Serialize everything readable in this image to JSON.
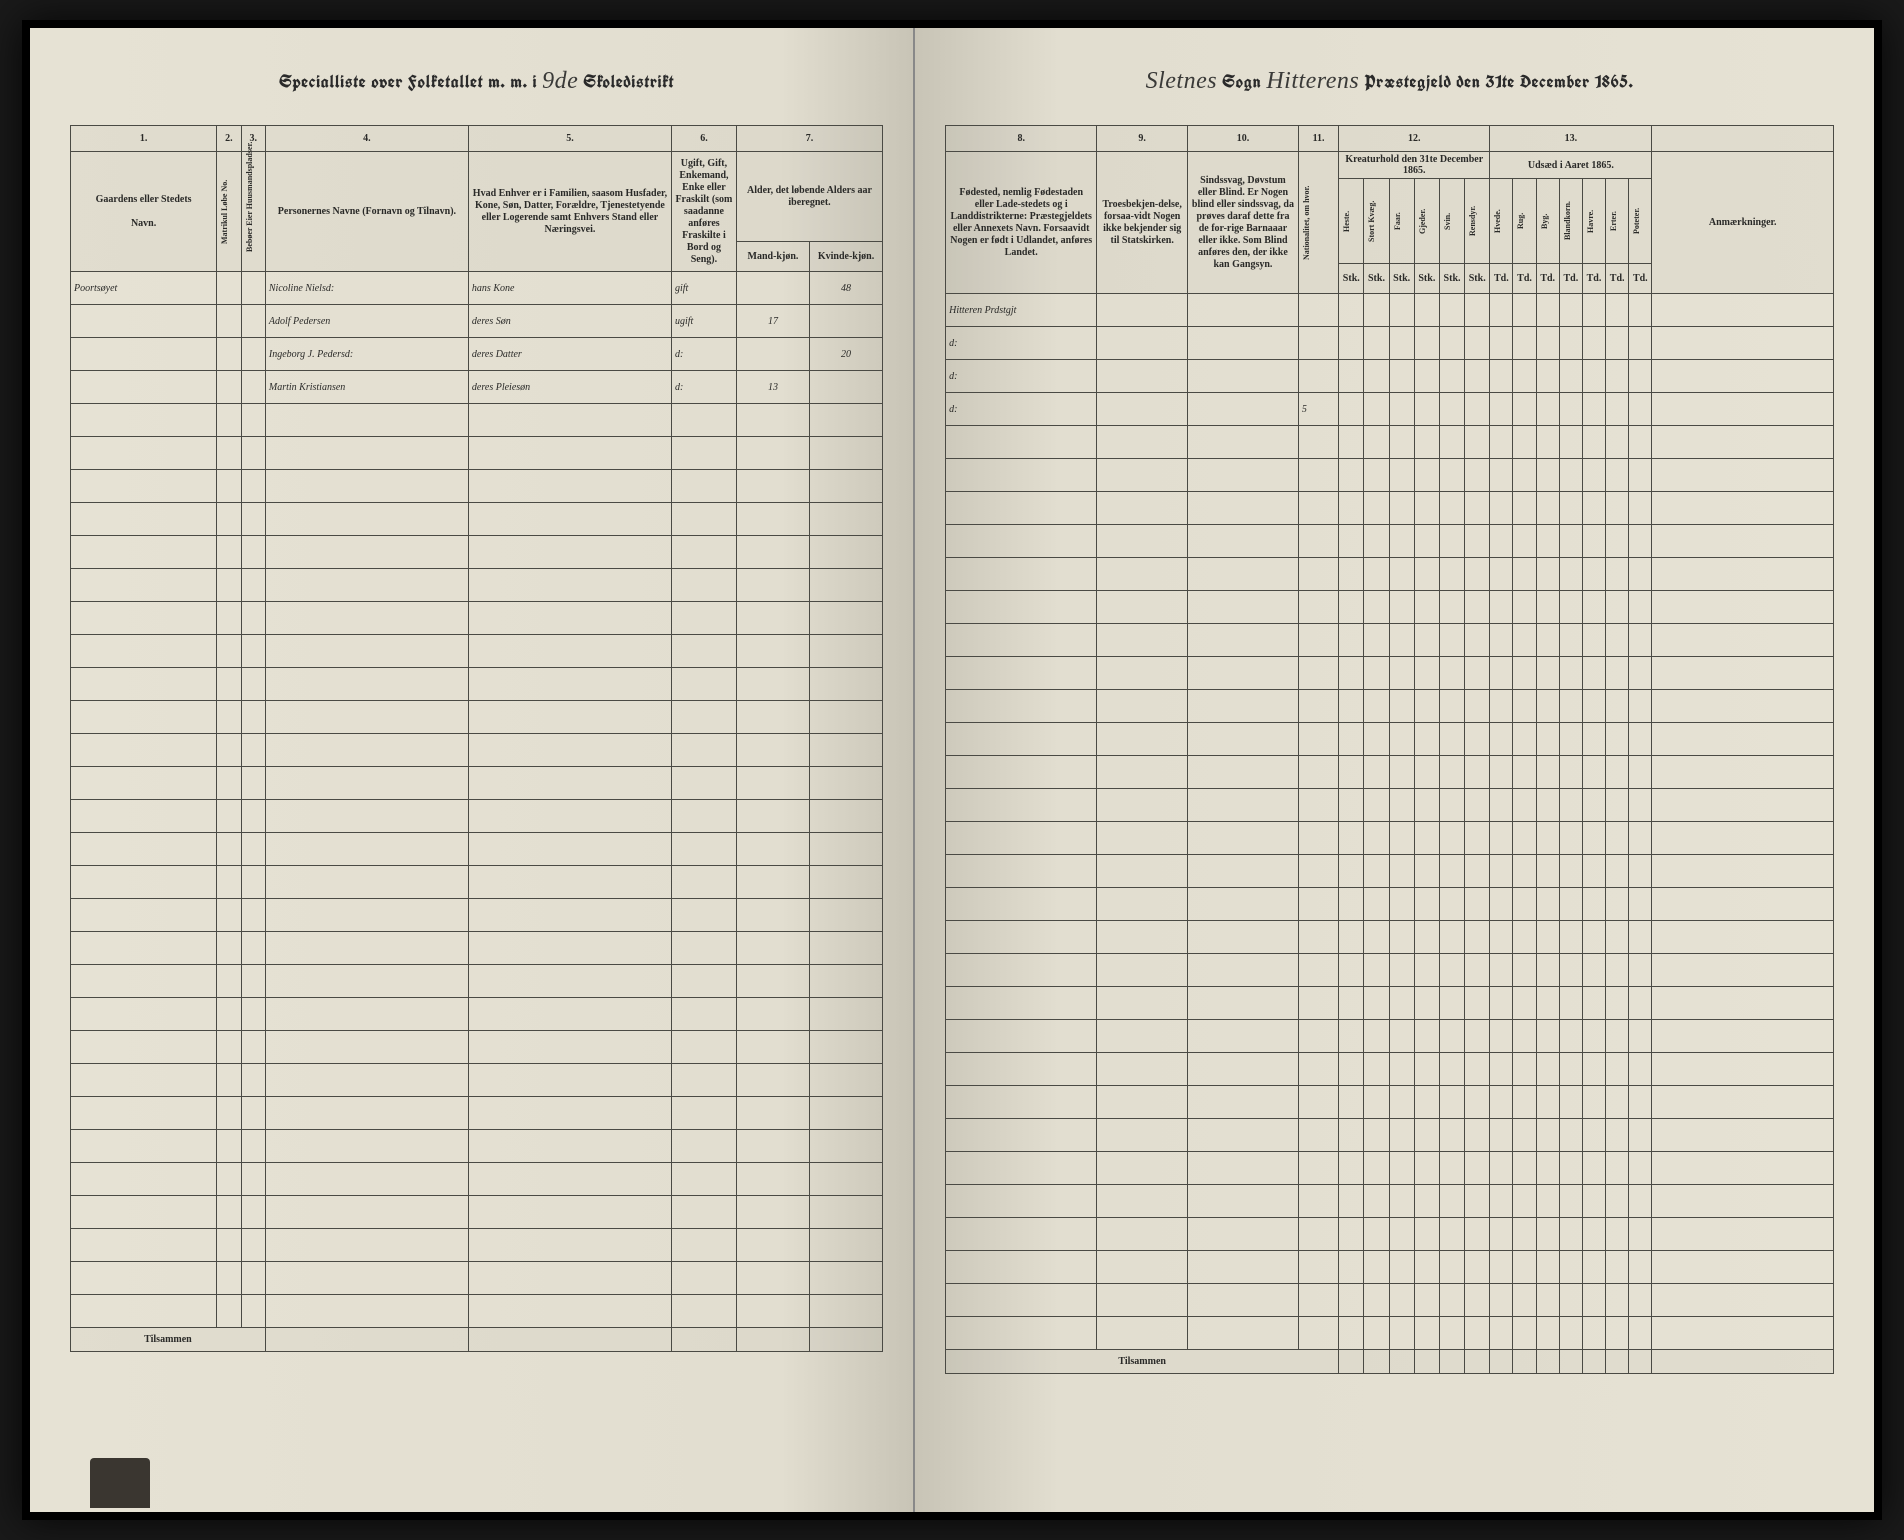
{
  "header": {
    "left_prefix": "Specialliste over Folketallet m. m. i",
    "district_num": "9de",
    "left_suffix": "Skoledistrikt",
    "sogn_label": "Sogn",
    "sogn_value": "Sletnes",
    "parish_value": "Hitterens",
    "right_suffix": "Præstegjeld den 31te December 1865."
  },
  "columns_left": {
    "c1_num": "1.",
    "c2_num": "2.",
    "c3_num": "3.",
    "c4_num": "4.",
    "c5_num": "5.",
    "c6_num": "6.",
    "c7_num": "7.",
    "c1_label": "Gaardens eller Stedets",
    "c1_sub": "Navn.",
    "c2_label": "Matrikul Løbe No.",
    "c3_label": "Bebøer Eier Huusmandspladser.",
    "c4_label": "Personernes Navne (Fornavn og Tilnavn).",
    "c5_label": "Hvad Enhver er i Familien, saasom Husfader, Kone, Søn, Datter, Forældre, Tjenestetyende eller Logerende samt Enhvers Stand eller Næringsvei.",
    "c6_label": "Ugift, Gift, Enkemand, Enke eller Fraskilt (som saadanne anføres Fraskilte i Bord og Seng).",
    "c7_label": "Alder, det løbende Alders aar iberegnet.",
    "c7a_sub": "Mand-kjøn.",
    "c7b_sub": "Kvinde-kjøn."
  },
  "columns_right": {
    "c8_num": "8.",
    "c9_num": "9.",
    "c10_num": "10.",
    "c11_num": "11.",
    "c12_num": "12.",
    "c13_num": "13.",
    "c8_label": "Fødested, nemlig Fødestaden eller Lade-stedets og i Landdistrikterne: Præstegjeldets eller Annexets Navn. Forsaavidt Nogen er født i Udlandet, anføres Landet.",
    "c9_label": "Troesbekjen-delse, forsaa-vidt Nogen ikke bekjender sig til Statskirken.",
    "c10_label": "Sindssvag, Døvstum eller Blind. Er Nogen blind eller sindssvag, da prøves daraf dette fra de for-rige Barnaaar eller ikke. Som Blind anføres den, der ikke kan Gangsyn.",
    "c11_label": "Nationalitet, om hvor.",
    "c12_label": "Kreaturhold den 31te December 1865.",
    "c13_label": "Udsæd i Aaret 1865.",
    "c12_subs": [
      "Heste.",
      "Stort Kvæg.",
      "Faar.",
      "Gjeder.",
      "Svin.",
      "Rensdyr."
    ],
    "c13_subs": [
      "Hvede.",
      "Rug.",
      "Byg.",
      "Blandkorn.",
      "Havre.",
      "Erter.",
      "Poteter."
    ],
    "c12_unit": "Stk.",
    "c13_unit": "Td.",
    "c14_label": "Anmærkninger."
  },
  "rows": [
    {
      "place": "Poortsøyet",
      "name": "Nicoline Nielsd:",
      "role": "hans Kone",
      "status": "gift",
      "age_m": "",
      "age_f": "48",
      "birthplace": "Hitteren Prdstgjt",
      "c11": ""
    },
    {
      "place": "",
      "name": "Adolf Pedersen",
      "role": "deres Søn",
      "status": "ugift",
      "age_m": "17",
      "age_f": "",
      "birthplace": "d:",
      "c11": ""
    },
    {
      "place": "",
      "name": "Ingeborg J. Pedersd:",
      "role": "deres Datter",
      "status": "d:",
      "age_m": "",
      "age_f": "20",
      "birthplace": "d:",
      "c11": ""
    },
    {
      "place": "",
      "name": "Martin Kristiansen",
      "role": "deres Pleiesøn",
      "status": "d:",
      "age_m": "13",
      "age_f": "",
      "birthplace": "d:",
      "c11": "5"
    }
  ],
  "empty_rows": 28,
  "footer": "Tilsammen",
  "styling": {
    "paper_bg": "#e4e0d2",
    "ink": "#2a2a28",
    "handwriting": "#3c3a36",
    "border": "#4a4a44"
  }
}
